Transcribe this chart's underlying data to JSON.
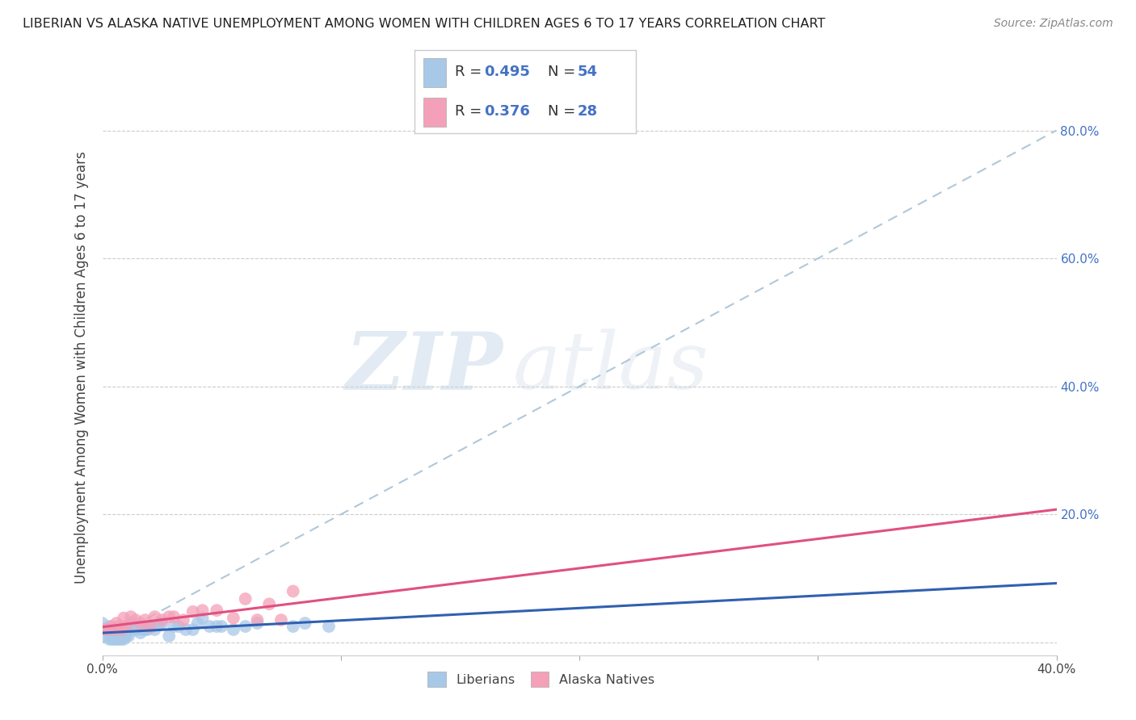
{
  "title": "LIBERIAN VS ALASKA NATIVE UNEMPLOYMENT AMONG WOMEN WITH CHILDREN AGES 6 TO 17 YEARS CORRELATION CHART",
  "source": "Source: ZipAtlas.com",
  "ylabel": "Unemployment Among Women with Children Ages 6 to 17 years",
  "xlim": [
    0.0,
    0.4
  ],
  "ylim": [
    -0.02,
    0.88
  ],
  "xticks": [
    0.0,
    0.1,
    0.2,
    0.3,
    0.4
  ],
  "xticklabels_show": [
    "0.0%",
    "",
    "",
    "",
    "40.0%"
  ],
  "right_yticks": [
    0.2,
    0.4,
    0.6,
    0.8
  ],
  "right_yticklabels": [
    "20.0%",
    "40.0%",
    "60.0%",
    "80.0%"
  ],
  "legend_R1": "0.495",
  "legend_N1": "54",
  "legend_R2": "0.376",
  "legend_N2": "28",
  "color_blue": "#a8c8e8",
  "color_pink": "#f4a0b8",
  "color_blue_line": "#3060b0",
  "color_pink_line": "#e05080",
  "color_diag_line": "#b0c8d8",
  "background_color": "#ffffff",
  "grid_color": "#cccccc",
  "watermark_zip": "ZIP",
  "watermark_atlas": "atlas",
  "blue_x": [
    0.0,
    0.0,
    0.002,
    0.003,
    0.003,
    0.004,
    0.004,
    0.005,
    0.005,
    0.005,
    0.006,
    0.006,
    0.006,
    0.007,
    0.007,
    0.007,
    0.008,
    0.008,
    0.009,
    0.009,
    0.01,
    0.01,
    0.01,
    0.011,
    0.012,
    0.012,
    0.013,
    0.014,
    0.015,
    0.016,
    0.017,
    0.018,
    0.019,
    0.02,
    0.021,
    0.022,
    0.024,
    0.025,
    0.028,
    0.03,
    0.032,
    0.035,
    0.038,
    0.04,
    0.042,
    0.045,
    0.048,
    0.05,
    0.055,
    0.06,
    0.065,
    0.08,
    0.085,
    0.095
  ],
  "blue_y": [
    0.02,
    0.03,
    0.01,
    0.005,
    0.025,
    0.005,
    0.015,
    0.005,
    0.01,
    0.02,
    0.005,
    0.01,
    0.02,
    0.005,
    0.01,
    0.02,
    0.005,
    0.01,
    0.005,
    0.02,
    0.01,
    0.015,
    0.025,
    0.01,
    0.02,
    0.03,
    0.025,
    0.02,
    0.025,
    0.015,
    0.02,
    0.02,
    0.02,
    0.025,
    0.025,
    0.02,
    0.03,
    0.03,
    0.01,
    0.025,
    0.025,
    0.02,
    0.02,
    0.03,
    0.038,
    0.025,
    0.025,
    0.025,
    0.02,
    0.025,
    0.03,
    0.025,
    0.03,
    0.025
  ],
  "pink_x": [
    0.0,
    0.002,
    0.004,
    0.005,
    0.006,
    0.007,
    0.008,
    0.009,
    0.01,
    0.012,
    0.014,
    0.016,
    0.018,
    0.02,
    0.022,
    0.025,
    0.028,
    0.03,
    0.034,
    0.038,
    0.042,
    0.048,
    0.055,
    0.06,
    0.065,
    0.07,
    0.075,
    0.08
  ],
  "pink_y": [
    0.02,
    0.02,
    0.025,
    0.02,
    0.03,
    0.025,
    0.02,
    0.038,
    0.025,
    0.04,
    0.035,
    0.03,
    0.035,
    0.025,
    0.04,
    0.035,
    0.04,
    0.04,
    0.035,
    0.048,
    0.05,
    0.05,
    0.038,
    0.068,
    0.035,
    0.06,
    0.035,
    0.08
  ]
}
